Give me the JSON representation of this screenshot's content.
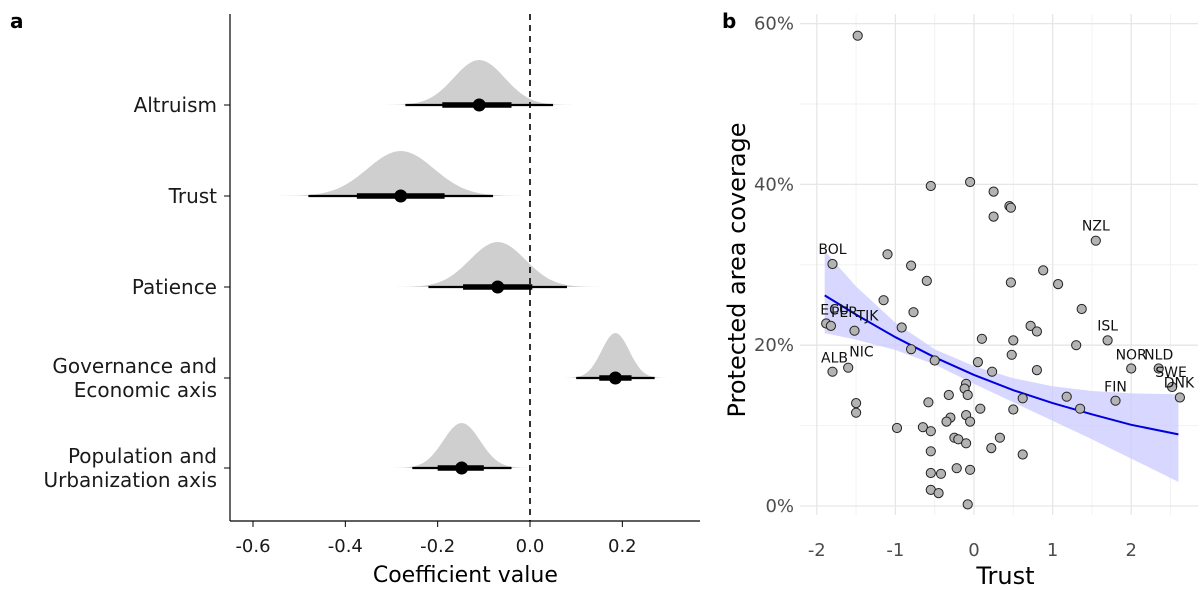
{
  "chart_data": [
    {
      "panel": "a",
      "type": "halfeye",
      "xlabel": "Coefficient value",
      "xlim": [
        -0.65,
        0.35
      ],
      "xticks": [
        -0.6,
        -0.4,
        -0.2,
        0.0,
        0.2
      ],
      "xtick_labels": [
        "-0.6",
        "-0.4",
        "-0.2",
        "0.0",
        "0.2"
      ],
      "reference_line": 0,
      "rows": [
        {
          "label_lines": [
            "Altruism"
          ],
          "median": -0.11,
          "sd": 0.055,
          "interval_66": [
            -0.19,
            -0.04
          ],
          "interval_95": [
            -0.27,
            0.05
          ]
        },
        {
          "label_lines": [
            "Trust"
          ],
          "median": -0.28,
          "sd": 0.072,
          "interval_66": [
            -0.375,
            -0.185
          ],
          "interval_95": [
            -0.48,
            -0.08
          ]
        },
        {
          "label_lines": [
            "Patience"
          ],
          "median": -0.07,
          "sd": 0.06,
          "interval_66": [
            -0.145,
            0.005
          ],
          "interval_95": [
            -0.22,
            0.08
          ]
        },
        {
          "label_lines": [
            "Governance and",
            "Economic axis"
          ],
          "median": 0.185,
          "sd": 0.03,
          "interval_66": [
            0.15,
            0.22
          ],
          "interval_95": [
            0.1,
            0.27
          ]
        },
        {
          "label_lines": [
            "Population and",
            "Urbanization axis"
          ],
          "median": -0.148,
          "sd": 0.04,
          "interval_66": [
            -0.2,
            -0.1
          ],
          "interval_95": [
            -0.255,
            -0.04
          ]
        }
      ],
      "colors": {
        "density": "#cfcfcf",
        "interval": "#000000"
      }
    },
    {
      "panel": "b",
      "type": "scatter",
      "xlabel": "Trust",
      "ylabel": "Protected area coverage",
      "xlim": [
        -2.05,
        2.7
      ],
      "ylim": [
        0,
        60
      ],
      "xticks": [
        -2,
        -1,
        0,
        1,
        2
      ],
      "xtick_labels": [
        "-2",
        "-1",
        "0",
        "1",
        "2"
      ],
      "yticks": [
        0,
        20,
        40,
        60
      ],
      "ytick_labels": [
        "0%",
        "20%",
        "40%",
        "60%"
      ],
      "grid": true,
      "fit": {
        "x": [
          -1.9,
          -1.5,
          -1.0,
          -0.5,
          0.0,
          0.5,
          1.0,
          1.5,
          2.0,
          2.6
        ],
        "y": [
          26.2,
          23.8,
          21.0,
          18.5,
          16.3,
          14.4,
          12.8,
          11.4,
          10.1,
          8.9
        ],
        "lower": [
          21.5,
          20.7,
          19.4,
          17.6,
          15.2,
          12.9,
          10.6,
          8.3,
          5.9,
          3.0
        ],
        "upper": [
          31.7,
          27.3,
          22.8,
          19.5,
          17.4,
          15.9,
          14.9,
          14.3,
          14.0,
          13.9
        ],
        "color": "#0000dd",
        "band_color": "#c9c9ff"
      },
      "points": [
        [
          -1.48,
          58.5
        ],
        [
          -1.8,
          30.1
        ],
        [
          -1.1,
          31.3
        ],
        [
          -0.8,
          29.9
        ],
        [
          -0.6,
          28.0
        ],
        [
          -1.15,
          25.6
        ],
        [
          -0.77,
          24.1
        ],
        [
          -0.92,
          22.2
        ],
        [
          -1.52,
          21.8
        ],
        [
          -1.88,
          22.7
        ],
        [
          -1.82,
          22.4
        ],
        [
          -1.6,
          17.2
        ],
        [
          -1.8,
          16.7
        ],
        [
          -0.8,
          19.5
        ],
        [
          -0.5,
          18.1
        ],
        [
          -0.55,
          39.8
        ],
        [
          -0.05,
          40.3
        ],
        [
          0.25,
          39.1
        ],
        [
          0.45,
          37.3
        ],
        [
          0.47,
          37.1
        ],
        [
          0.25,
          36.0
        ],
        [
          1.55,
          33.0
        ],
        [
          0.88,
          29.3
        ],
        [
          1.07,
          27.6
        ],
        [
          0.47,
          27.8
        ],
        [
          1.37,
          24.5
        ],
        [
          0.1,
          20.8
        ],
        [
          0.72,
          22.4
        ],
        [
          0.8,
          21.7
        ],
        [
          0.5,
          20.6
        ],
        [
          1.7,
          20.6
        ],
        [
          1.3,
          20.0
        ],
        [
          0.48,
          18.8
        ],
        [
          2.0,
          17.1
        ],
        [
          2.35,
          17.1
        ],
        [
          0.05,
          17.9
        ],
        [
          0.23,
          16.7
        ],
        [
          0.8,
          16.9
        ],
        [
          2.52,
          14.8
        ],
        [
          2.62,
          13.5
        ],
        [
          1.8,
          13.1
        ],
        [
          1.18,
          13.6
        ],
        [
          1.35,
          12.1
        ],
        [
          0.62,
          13.4
        ],
        [
          0.5,
          12.0
        ],
        [
          -0.1,
          15.2
        ],
        [
          -0.12,
          14.6
        ],
        [
          -0.32,
          13.8
        ],
        [
          -0.58,
          12.9
        ],
        [
          -0.08,
          13.8
        ],
        [
          0.08,
          12.1
        ],
        [
          -1.5,
          12.8
        ],
        [
          -1.5,
          11.6
        ],
        [
          -0.3,
          11.0
        ],
        [
          -0.35,
          10.5
        ],
        [
          -0.1,
          11.3
        ],
        [
          -0.05,
          10.5
        ],
        [
          -0.98,
          9.7
        ],
        [
          -0.65,
          9.8
        ],
        [
          -0.55,
          9.3
        ],
        [
          0.33,
          8.5
        ],
        [
          -0.25,
          8.5
        ],
        [
          -0.2,
          8.3
        ],
        [
          -0.1,
          7.8
        ],
        [
          0.22,
          7.2
        ],
        [
          0.62,
          6.4
        ],
        [
          -0.55,
          6.8
        ],
        [
          -0.05,
          4.5
        ],
        [
          -0.22,
          4.7
        ],
        [
          -0.42,
          4.0
        ],
        [
          -0.55,
          4.1
        ],
        [
          -0.55,
          2.0
        ],
        [
          -0.45,
          1.6
        ],
        [
          -0.08,
          0.2
        ]
      ],
      "point_color": "#b3b3b3",
      "labels": [
        {
          "text": "BOL",
          "x": -1.8,
          "y": 30.1
        },
        {
          "text": "NZL",
          "x": 1.55,
          "y": 33.0
        },
        {
          "text": "ECU",
          "x": -1.88,
          "y": 22.7
        },
        {
          "text": "PER",
          "x": -1.82,
          "y": 22.4
        },
        {
          "text": "TJK",
          "x": -1.52,
          "y": 21.8
        },
        {
          "text": "ISL",
          "x": 1.7,
          "y": 20.6
        },
        {
          "text": "ALB",
          "x": -1.8,
          "y": 16.7
        },
        {
          "text": "NIC",
          "x": -1.6,
          "y": 17.2
        },
        {
          "text": "NOR",
          "x": 2.0,
          "y": 17.1
        },
        {
          "text": "NLD",
          "x": 2.35,
          "y": 17.1
        },
        {
          "text": "SWE",
          "x": 2.52,
          "y": 14.8
        },
        {
          "text": "DNK",
          "x": 2.62,
          "y": 13.5
        },
        {
          "text": "FIN",
          "x": 1.8,
          "y": 13.1
        }
      ]
    }
  ]
}
